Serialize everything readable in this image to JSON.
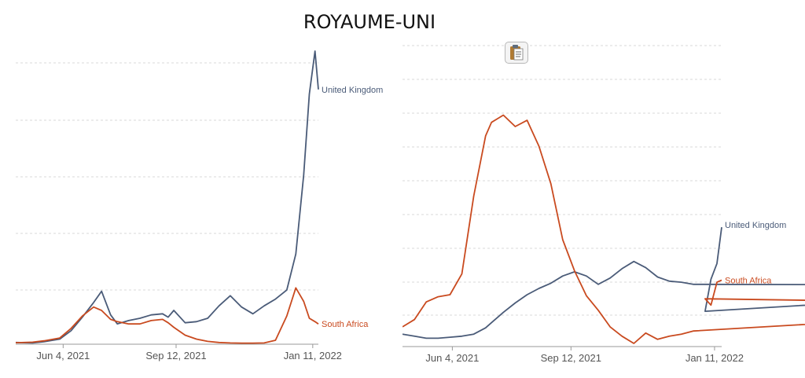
{
  "page": {
    "title": "ROYAUME-UNI"
  },
  "toolbar": {
    "copy_icon": "clipboard-icon"
  },
  "chart_data": [
    {
      "type": "line",
      "xlabel": "",
      "ylabel": "",
      "x_ticks": [
        "Jun 4, 2021",
        "Sep 12, 2021",
        "Jan 11, 2022"
      ],
      "x": [
        "Apr 23, 2021",
        "May 8, 2021",
        "May 18, 2021",
        "Jun 1, 2021",
        "Jun 11, 2021",
        "Jun 21, 2021",
        "Jul 1, 2021",
        "Jul 8, 2021",
        "Jul 16, 2021",
        "Jul 22, 2021",
        "Aug 1, 2021",
        "Aug 11, 2021",
        "Aug 21, 2021",
        "Aug 31, 2021",
        "Sep 5, 2021",
        "Sep 10, 2021",
        "Sep 20, 2021",
        "Sep 30, 2021",
        "Oct 10, 2021",
        "Oct 20, 2021",
        "Oct 30, 2021",
        "Nov 9, 2021",
        "Nov 19, 2021",
        "Nov 29, 2021",
        "Dec 9, 2021",
        "Dec 19, 2021",
        "Dec 27, 2021",
        "Jan 3, 2022",
        "Jan 8, 2022",
        "Jan 13, 2022",
        "Jan 16, 2022"
      ],
      "grid": true,
      "legend": "inline labels at line ends",
      "series": [
        {
          "name": "United Kingdom",
          "color": "#4a5b78",
          "values": [
            1.5,
            1.2,
            2.2,
            4.5,
            12,
            24,
            37,
            47,
            26,
            18,
            21,
            23,
            26,
            27,
            24,
            30,
            19,
            20,
            23,
            34,
            43,
            33,
            27,
            34,
            40,
            48,
            80,
            150,
            222,
            260,
            226
          ]
        },
        {
          "name": "South Africa",
          "color": "#c94a1f",
          "values": [
            1.3,
            1.8,
            3.0,
            5.5,
            14,
            25,
            33,
            30,
            22,
            20,
            18,
            18,
            21,
            22,
            19,
            15,
            8,
            4.5,
            2.5,
            1.5,
            1.1,
            1.0,
            1.0,
            1.1,
            3.5,
            25,
            50,
            38,
            23,
            20,
            18
          ]
        }
      ]
    },
    {
      "type": "line",
      "xlabel": "",
      "ylabel": "",
      "x_ticks": [
        "Jun 4, 2021",
        "Sep 12, 2021",
        "Jan 11, 2022"
      ],
      "x": [
        "Apr 23, 2021",
        "May 3, 2021",
        "May 13, 2021",
        "May 23, 2021",
        "Jun 2, 2021",
        "Jun 12, 2021",
        "Jun 22, 2021",
        "Jul 2, 2021",
        "Jul 7, 2021",
        "Jul 17, 2021",
        "Jul 27, 2021",
        "Aug 6, 2021",
        "Aug 16, 2021",
        "Aug 26, 2021",
        "Sep 5, 2021",
        "Sep 15, 2021",
        "Sep 25, 2021",
        "Oct 5, 2021",
        "Oct 15, 2021",
        "Oct 25, 2021",
        "Nov 4, 2021",
        "Nov 14, 2021",
        "Nov 24, 2021",
        "Dec 4, 2021",
        "Dec 14, 2021",
        "Dec 24, 2021",
        "Dec 31, 2022",
        "Jan 3, 2022",
        "Jan 8, 2022",
        "Jan 13, 2022",
        "Jan 17, 2022"
      ],
      "grid": true,
      "legend": "inline labels at line ends",
      "series": [
        {
          "name": "United Kingdom",
          "color": "#4a5b78",
          "values": [
            1.2,
            1.0,
            0.8,
            0.8,
            0.9,
            1.0,
            1.2,
            1.8,
            2.3,
            3.3,
            4.2,
            5.0,
            5.6,
            6.1,
            6.8,
            7.2,
            6.8,
            6.0,
            6.6,
            7.5,
            8.2,
            7.6,
            6.7,
            6.3,
            6.2,
            6.0,
            5.9,
            3.4,
            6.5,
            8.0,
            11.5
          ]
        },
        {
          "name": "South Africa",
          "color": "#c94a1f",
          "values": [
            1.9,
            2.6,
            4.3,
            4.8,
            5.0,
            7.0,
            14.5,
            20.3,
            21.6,
            22.3,
            21.2,
            21.8,
            19.3,
            15.7,
            10.3,
            7.3,
            4.9,
            3.5,
            1.9,
            1.0,
            0.3,
            1.3,
            0.7,
            1.0,
            1.2,
            1.5,
            4.0,
            4.6,
            4.0,
            6.2,
            6.4
          ]
        }
      ]
    }
  ]
}
